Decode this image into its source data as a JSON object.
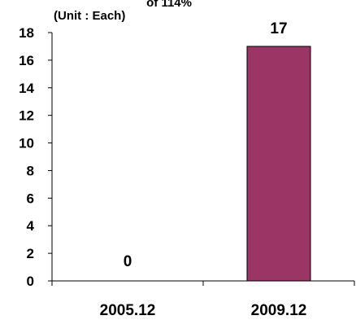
{
  "chart_data": {
    "type": "bar",
    "top_clipped_text": "of 114%",
    "unit_label": "(Unit : Each)",
    "categories": [
      "2005.12",
      "2009.12"
    ],
    "values": [
      0,
      17
    ],
    "data_labels": [
      "0",
      "17"
    ],
    "ylim": [
      0,
      18
    ],
    "y_ticks": [
      0,
      2,
      4,
      6,
      8,
      10,
      12,
      14,
      16,
      18
    ],
    "y_tick_labels": [
      "0",
      "2",
      "4",
      "6",
      "8",
      "10",
      "12",
      "14",
      "16",
      "18"
    ],
    "grid": false,
    "legend": "none",
    "bar_color": "#9b3566",
    "bar_border_color": "#000000"
  }
}
